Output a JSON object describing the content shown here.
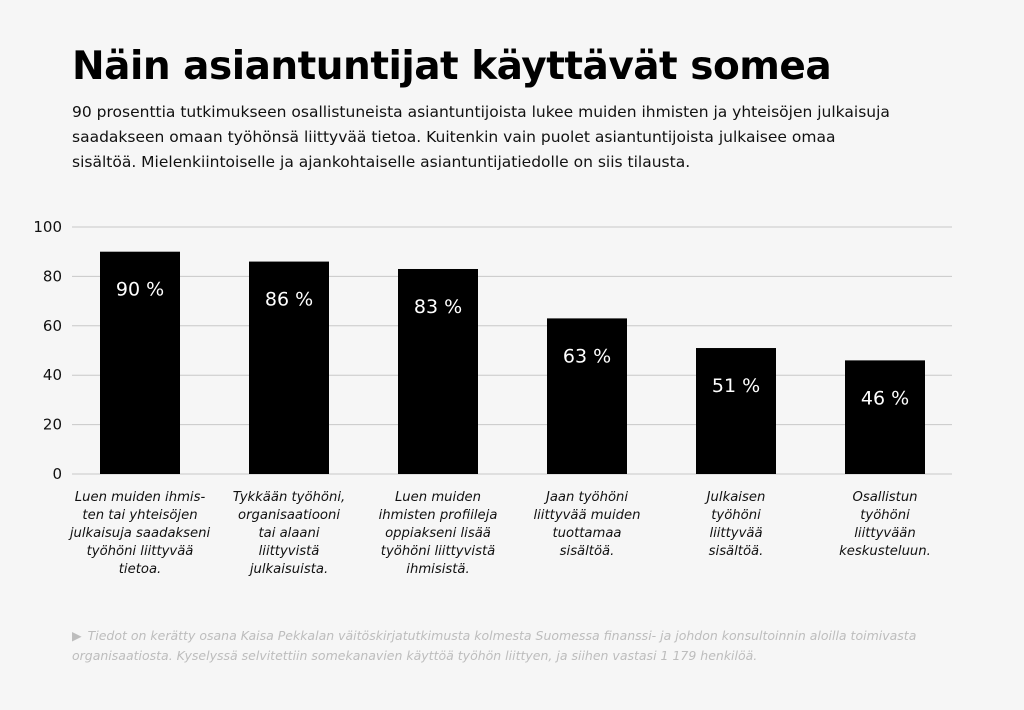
{
  "title": "Näin asiantuntijat käyttävät somea",
  "subtitle": "90 prosenttia tutkimukseen osallistuneista asiantuntijoista lukee muiden ihmisten ja yhteisöjen julkaisuja saadakseen omaan työhönsä liittyvää tietoa. Kuitenkin vain puolet asiantuntijoista julkaisee omaa sisältöä. Mielenkiintoiselle ja ajankohtaiselle asiantuntijatiedolle on siis tilausta.",
  "chart_data": {
    "type": "bar",
    "categories": [
      "Luen muiden ihmis-\nten tai yhteisöjen\njulkaisuja saadakseni\ntyöhöni liittyvää\ntietoa.",
      "Tykkään työhöni,\norganisaatiooni\ntai alaani\nliittyvistä\njulkaisuista.",
      "Luen muiden\nihmisten profiileja\noppiakseni lisää\ntyöhöni liittyvistä\nihmisistä.",
      "Jaan työhöni\nliittyvää muiden\ntuottamaa\nsisältöä.",
      "Julkaisen\ntyöhöni\nliittyvää\nsisältöä.",
      "Osallistun\ntyöhöni\nliittyvään\nkeskusteluun."
    ],
    "values": [
      90,
      86,
      83,
      63,
      51,
      46
    ],
    "value_labels": [
      "90 %",
      "86 %",
      "83 %",
      "63 %",
      "51 %",
      "46 %"
    ],
    "yticks": [
      "0",
      "20",
      "40",
      "60",
      "80",
      "100"
    ],
    "ylim": [
      0,
      100
    ],
    "grid": true,
    "colors": {
      "bar": "#000000",
      "grid": "#c8c8c8",
      "value_text": "#ffffff"
    }
  },
  "footnote": {
    "marker": "▶",
    "text": "Tiedot on kerätty osana Kaisa Pekkalan väitöskirjatutkimusta kolmesta Suomessa finanssi- ja johdon konsultoinnin aloilla toimivasta organisaatiosta. Kyselyssä selvitettiin somekanavien käyttöä työhön liittyen, ja siihen vastasi 1 179 henkilöä."
  }
}
